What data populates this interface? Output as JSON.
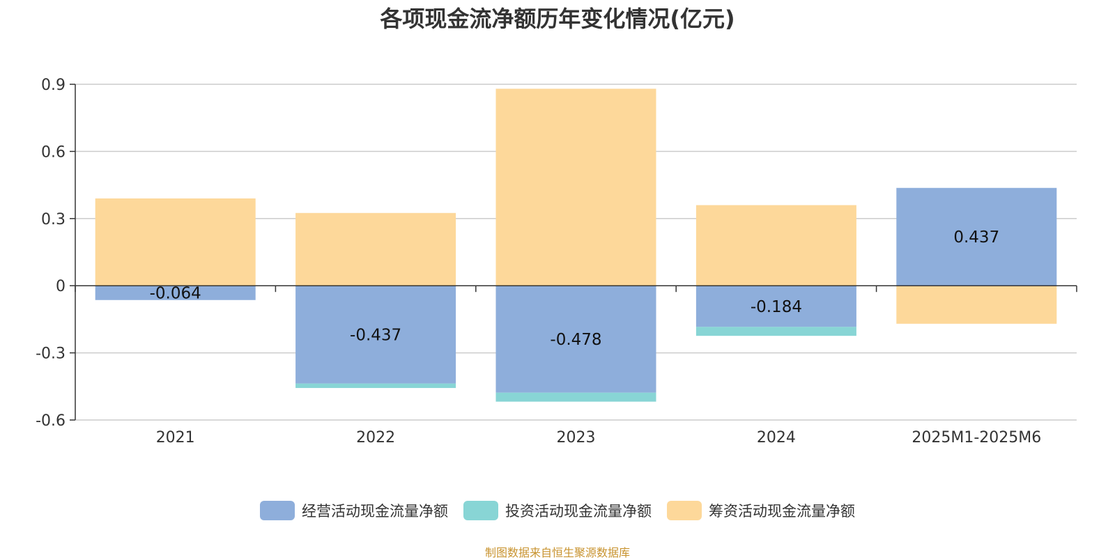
{
  "chart_data": {
    "type": "bar",
    "title": "各项现金流净额历年变化情况(亿元)",
    "categories": [
      "2021",
      "2022",
      "2023",
      "2024",
      "2025M1-2025M6"
    ],
    "series": [
      {
        "name": "经营活动现金流量净额",
        "color": "#8eaedb",
        "values": [
          -0.064,
          -0.437,
          -0.478,
          -0.184,
          0.437
        ],
        "labels": [
          "-0.064",
          "-0.437",
          "-0.478",
          "-0.184",
          "0.437"
        ]
      },
      {
        "name": "投资活动现金流量净额",
        "color": "#88d5d5",
        "values": [
          0,
          -0.02,
          -0.04,
          -0.04,
          0
        ]
      },
      {
        "name": "筹资活动现金流量净额",
        "color": "#fdd89a",
        "values": [
          0.39,
          0.325,
          0.88,
          0.36,
          -0.17
        ]
      }
    ],
    "stacked": true,
    "ylim": [
      -0.6,
      0.9
    ],
    "yticks": [
      -0.6,
      -0.3,
      0,
      0.3,
      0.6,
      0.9
    ],
    "ytick_labels": [
      "-0.6",
      "-0.3",
      "0",
      "0.3",
      "0.6",
      "0.9"
    ],
    "grid": true,
    "legend_position": "bottom"
  },
  "source_note": "制图数据来自恒生聚源数据库"
}
